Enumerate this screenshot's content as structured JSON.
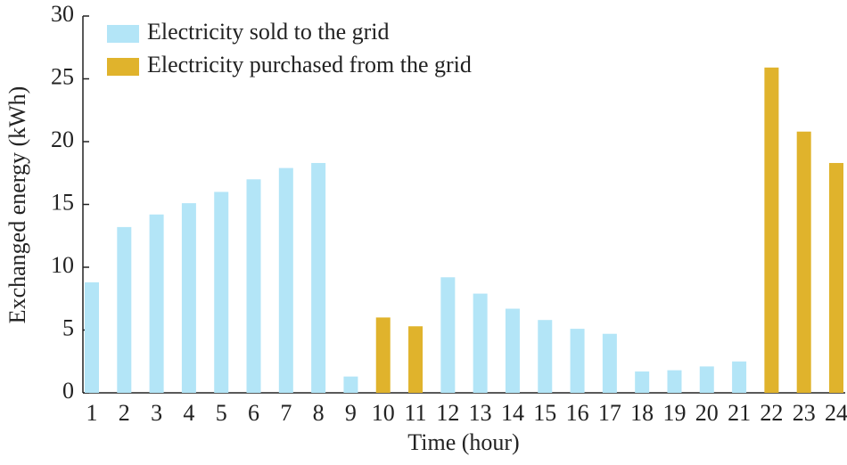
{
  "chart_data": {
    "type": "bar",
    "x_label": "Time (hour)",
    "y_label": "Exchanged energy (kWh)",
    "categories": [
      "1",
      "2",
      "3",
      "4",
      "5",
      "6",
      "7",
      "8",
      "9",
      "10",
      "11",
      "12",
      "13",
      "14",
      "15",
      "16",
      "17",
      "18",
      "19",
      "20",
      "21",
      "22",
      "23",
      "24"
    ],
    "series": [
      {
        "name": "Electricity sold to the grid",
        "color": "#b3e5f7",
        "values": [
          8.8,
          13.2,
          14.2,
          15.1,
          16.0,
          17.0,
          17.9,
          18.3,
          1.3,
          null,
          null,
          9.2,
          7.9,
          6.7,
          5.8,
          5.1,
          4.7,
          1.7,
          1.8,
          2.1,
          2.5,
          null,
          null,
          null
        ]
      },
      {
        "name": "Electricity purchased from the grid",
        "color": "#e0b32c",
        "values": [
          null,
          null,
          null,
          null,
          null,
          null,
          null,
          null,
          null,
          6.0,
          5.3,
          null,
          null,
          null,
          null,
          null,
          null,
          null,
          null,
          null,
          null,
          25.9,
          20.8,
          18.3
        ]
      }
    ],
    "ylim": [
      0,
      30
    ],
    "yticks": [
      0,
      5,
      10,
      15,
      20,
      25,
      30
    ],
    "legend": "upper left"
  }
}
